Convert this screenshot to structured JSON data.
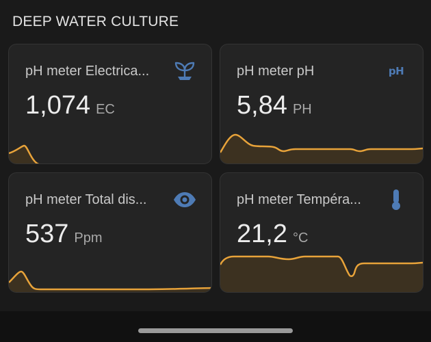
{
  "section": {
    "title": "DEEP WATER CULTURE"
  },
  "colors": {
    "accent_line": "#e8a33a",
    "fill": "#3c3120",
    "icon": "#4e7bb5"
  },
  "cards": [
    {
      "name": "pH meter Electrica...",
      "value": "1,074",
      "unit": "EC",
      "icon": "sprout-icon"
    },
    {
      "name": "pH meter pH",
      "value": "5,84",
      "unit": "PH",
      "icon": "ph-icon",
      "icon_text": "pH"
    },
    {
      "name": "pH meter Total dis...",
      "value": "537",
      "unit": "Ppm",
      "icon": "eye-icon"
    },
    {
      "name": "pH meter Tempéra...",
      "value": "21,2",
      "unit": "°C",
      "icon": "thermometer-icon"
    }
  ]
}
